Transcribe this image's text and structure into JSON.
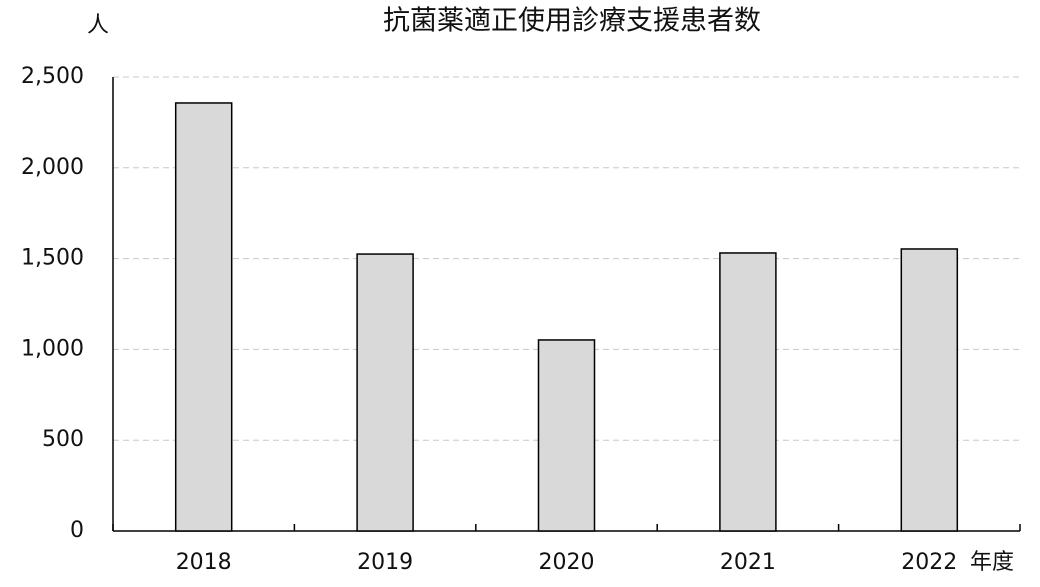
{
  "chart_data": {
    "type": "bar",
    "title": "抗菌薬適正使用診療支援患者数",
    "y_label": "人",
    "x_label": "年度",
    "categories": [
      "2018",
      "2019",
      "2020",
      "2021",
      "2022"
    ],
    "values": [
      2357,
      1525,
      1052,
      1531,
      1553
    ],
    "color": "#d9d9d9",
    "ylim": [
      0,
      2500
    ],
    "yticks": [
      0,
      500,
      {
        "value": 1000,
        "label": "1,000"
      },
      {
        "value": 1500,
        "label": "1,500"
      },
      {
        "value": 2000,
        "label": "2,000"
      },
      {
        "value": 2500,
        "label": "2,500"
      }
    ],
    "grid": true
  }
}
